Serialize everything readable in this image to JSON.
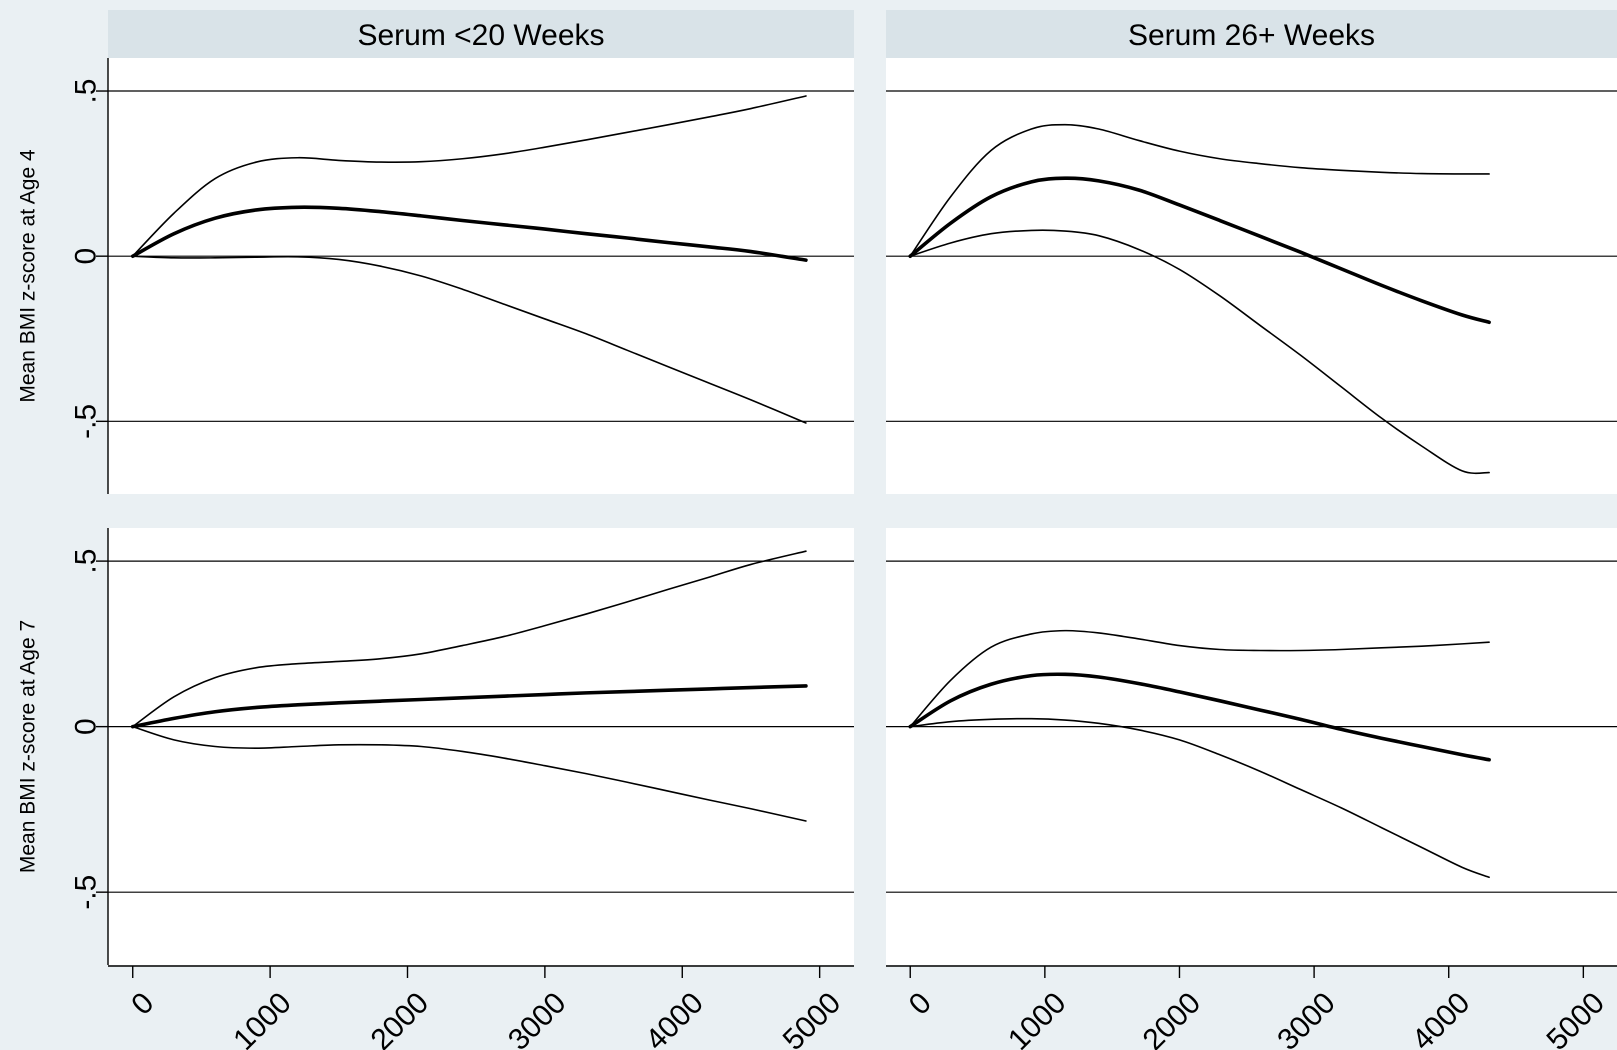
{
  "chart_data": [
    {
      "type": "line",
      "panel_title": "Serum <20 Weeks",
      "ylabel": "Mean BMI z-score at Age 4",
      "xticks": [
        "0",
        "1000",
        "2000",
        "3000",
        "4000",
        "5000"
      ],
      "yticks": [
        ".5",
        "0",
        "-.5"
      ],
      "xlim": [
        -180,
        5250
      ],
      "ylim": [
        -0.72,
        0.6
      ],
      "grid": true,
      "series": [
        {
          "x": [
            0,
            300,
            600,
            900,
            1200,
            1500,
            1800,
            2100,
            2400,
            2700,
            3000,
            3300,
            3600,
            3900,
            4200,
            4500,
            4900
          ],
          "values": [
            0,
            0.13,
            0.235,
            0.285,
            0.298,
            0.29,
            0.285,
            0.286,
            0.295,
            0.31,
            0.33,
            0.352,
            0.375,
            0.398,
            0.422,
            0.447,
            0.485
          ]
        },
        {
          "x": [
            0,
            300,
            600,
            900,
            1200,
            1500,
            1800,
            2100,
            2400,
            2700,
            3000,
            3300,
            3600,
            3900,
            4200,
            4500,
            4900
          ],
          "values": [
            0,
            0.068,
            0.115,
            0.14,
            0.148,
            0.145,
            0.135,
            0.122,
            0.108,
            0.095,
            0.082,
            0.068,
            0.055,
            0.041,
            0.028,
            0.014,
            -0.012
          ]
        },
        {
          "x": [
            0,
            300,
            600,
            900,
            1200,
            1500,
            1800,
            2100,
            2400,
            2700,
            3000,
            3300,
            3600,
            3900,
            4200,
            4500,
            4900
          ],
          "values": [
            0,
            -0.005,
            -0.005,
            -0.003,
            -0.002,
            -0.01,
            -0.03,
            -0.06,
            -0.1,
            -0.145,
            -0.19,
            -0.235,
            -0.285,
            -0.335,
            -0.385,
            -0.435,
            -0.505
          ]
        }
      ]
    },
    {
      "type": "line",
      "panel_title": "Serum 26+ Weeks",
      "ylabel": "",
      "xticks": [
        "0",
        "1000",
        "2000",
        "3000",
        "4000",
        "5000"
      ],
      "yticks": [
        ".5",
        "0",
        "-.5"
      ],
      "xlim": [
        -180,
        5250
      ],
      "ylim": [
        -0.72,
        0.6
      ],
      "grid": true,
      "series": [
        {
          "x": [
            0,
            300,
            600,
            900,
            1150,
            1400,
            1700,
            2000,
            2300,
            2600,
            2900,
            3200,
            3500,
            3800,
            4100,
            4300
          ],
          "values": [
            0,
            0.18,
            0.32,
            0.385,
            0.398,
            0.385,
            0.35,
            0.318,
            0.295,
            0.28,
            0.268,
            0.26,
            0.254,
            0.25,
            0.249,
            0.249
          ]
        },
        {
          "x": [
            0,
            300,
            600,
            900,
            1150,
            1400,
            1700,
            2000,
            2300,
            2600,
            2900,
            3200,
            3500,
            3800,
            4100,
            4300
          ],
          "values": [
            0,
            0.1,
            0.18,
            0.225,
            0.236,
            0.228,
            0.2,
            0.155,
            0.108,
            0.06,
            0.012,
            -0.038,
            -0.088,
            -0.135,
            -0.178,
            -0.2
          ]
        },
        {
          "x": [
            0,
            300,
            600,
            900,
            1150,
            1400,
            1700,
            2000,
            2300,
            2600,
            2900,
            3200,
            3500,
            3800,
            4100,
            4300
          ],
          "values": [
            0,
            0.04,
            0.068,
            0.078,
            0.076,
            0.062,
            0.02,
            -0.04,
            -0.12,
            -0.21,
            -0.3,
            -0.395,
            -0.49,
            -0.575,
            -0.65,
            -0.655
          ]
        }
      ]
    },
    {
      "type": "line",
      "panel_title": "",
      "ylabel": "Mean BMI z-score at Age 7",
      "xticks": [
        "0",
        "1000",
        "2000",
        "3000",
        "4000",
        "5000"
      ],
      "yticks": [
        ".5",
        "0",
        "-.5"
      ],
      "xlim": [
        -180,
        5250
      ],
      "ylim": [
        -0.72,
        0.6
      ],
      "grid": true,
      "series": [
        {
          "x": [
            0,
            300,
            600,
            900,
            1200,
            1500,
            1800,
            2100,
            2400,
            2700,
            3000,
            3300,
            3600,
            3900,
            4200,
            4500,
            4900
          ],
          "values": [
            0,
            0.09,
            0.148,
            0.178,
            0.19,
            0.197,
            0.205,
            0.22,
            0.245,
            0.272,
            0.305,
            0.34,
            0.377,
            0.415,
            0.452,
            0.49,
            0.53
          ]
        },
        {
          "x": [
            0,
            300,
            600,
            900,
            1200,
            1500,
            1800,
            2100,
            2400,
            2700,
            3000,
            3300,
            3600,
            3900,
            4200,
            4500,
            4900
          ],
          "values": [
            0,
            0.025,
            0.045,
            0.058,
            0.066,
            0.072,
            0.077,
            0.082,
            0.087,
            0.092,
            0.097,
            0.102,
            0.106,
            0.11,
            0.114,
            0.118,
            0.123
          ]
        },
        {
          "x": [
            0,
            300,
            600,
            900,
            1200,
            1500,
            1800,
            2100,
            2400,
            2700,
            3000,
            3300,
            3600,
            3900,
            4200,
            4500,
            4900
          ],
          "values": [
            0,
            -0.04,
            -0.06,
            -0.065,
            -0.06,
            -0.055,
            -0.055,
            -0.06,
            -0.075,
            -0.095,
            -0.118,
            -0.142,
            -0.168,
            -0.195,
            -0.222,
            -0.248,
            -0.285
          ]
        }
      ]
    },
    {
      "type": "line",
      "panel_title": "",
      "ylabel": "",
      "xticks": [
        "0",
        "1000",
        "2000",
        "3000",
        "4000",
        "5000"
      ],
      "yticks": [
        ".5",
        "0",
        "-.5"
      ],
      "xlim": [
        -180,
        5250
      ],
      "ylim": [
        -0.72,
        0.6
      ],
      "grid": true,
      "series": [
        {
          "x": [
            0,
            300,
            600,
            900,
            1150,
            1400,
            1700,
            2000,
            2300,
            2600,
            2900,
            3200,
            3500,
            3800,
            4100,
            4300
          ],
          "values": [
            0,
            0.14,
            0.24,
            0.28,
            0.29,
            0.283,
            0.265,
            0.245,
            0.233,
            0.23,
            0.23,
            0.233,
            0.238,
            0.243,
            0.25,
            0.255
          ]
        },
        {
          "x": [
            0,
            300,
            600,
            900,
            1150,
            1400,
            1700,
            2000,
            2300,
            2600,
            2900,
            3200,
            3500,
            3800,
            4100,
            4300
          ],
          "values": [
            0,
            0.078,
            0.128,
            0.154,
            0.158,
            0.15,
            0.13,
            0.105,
            0.078,
            0.05,
            0.022,
            -0.008,
            -0.035,
            -0.06,
            -0.085,
            -0.1
          ]
        },
        {
          "x": [
            0,
            300,
            600,
            900,
            1150,
            1400,
            1700,
            2000,
            2300,
            2600,
            2900,
            3200,
            3500,
            3800,
            4100,
            4300
          ],
          "values": [
            0,
            0.015,
            0.022,
            0.024,
            0.02,
            0.01,
            -0.01,
            -0.04,
            -0.085,
            -0.135,
            -0.19,
            -0.245,
            -0.305,
            -0.365,
            -0.425,
            -0.455
          ]
        }
      ]
    }
  ]
}
